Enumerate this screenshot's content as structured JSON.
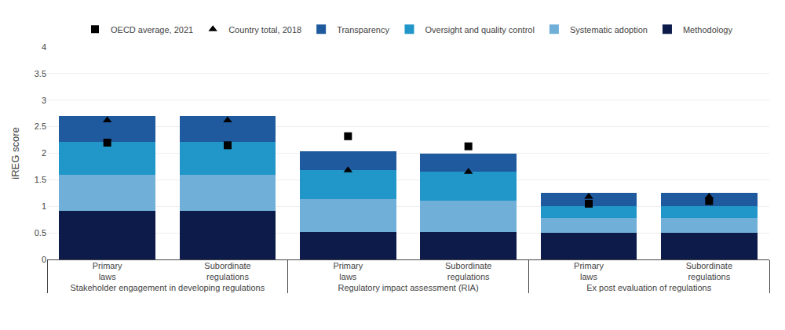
{
  "chart_data": {
    "type": "bar",
    "stacked": true,
    "grid": true,
    "ylabel": "iREG score",
    "ylim": [
      0,
      4
    ],
    "yticks": [
      0,
      0.5,
      1,
      1.5,
      2,
      2.5,
      3,
      3.5,
      4
    ],
    "groups": [
      {
        "label": "Stakeholder engagement in developing regulations",
        "categories": [
          "Primary\nlaws",
          "Subordinate\nregulations"
        ]
      },
      {
        "label": "Regulatory impact assessment (RIA)",
        "categories": [
          "Primary\nlaws",
          "Subordinate\nregulations"
        ]
      },
      {
        "label": "Ex post evaluation of regulations",
        "categories": [
          "Primary\nlaws",
          "Subordinate\nregulations"
        ]
      }
    ],
    "series": [
      {
        "name": "Methodology",
        "color": "#0d1b4b",
        "values": [
          0.92,
          0.92,
          0.52,
          0.52,
          0.5,
          0.5
        ]
      },
      {
        "name": "Systematic adoption",
        "color": "#70b0d8",
        "values": [
          0.68,
          0.68,
          0.62,
          0.58,
          0.28,
          0.28
        ]
      },
      {
        "name": "Oversight and quality control",
        "color": "#2196c8",
        "values": [
          0.62,
          0.62,
          0.55,
          0.55,
          0.23,
          0.23
        ]
      },
      {
        "name": "Transparency",
        "color": "#1f5a9e",
        "values": [
          0.48,
          0.48,
          0.35,
          0.35,
          0.25,
          0.25
        ]
      },
      {
        "name": "Country total, 2018",
        "type": "scatter",
        "marker": "triangle-up",
        "color": "#000000",
        "values": [
          2.62,
          2.62,
          1.68,
          1.65,
          1.18,
          1.18
        ]
      },
      {
        "name": "OECD average, 2021",
        "type": "scatter",
        "marker": "square",
        "color": "#000000",
        "values": [
          2.2,
          2.15,
          2.32,
          2.13,
          1.05,
          1.1
        ]
      }
    ]
  }
}
